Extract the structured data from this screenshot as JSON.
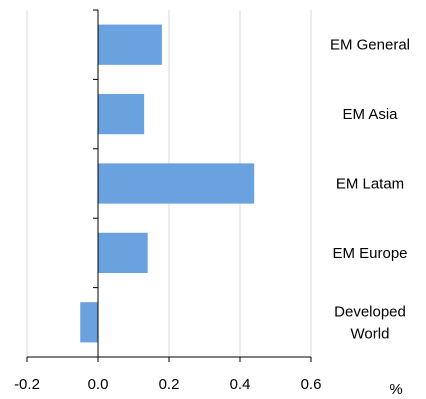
{
  "chart_data": {
    "type": "bar",
    "orientation": "horizontal",
    "categories": [
      "EM General",
      "EM Asia",
      "EM Latam",
      "EM Europe",
      "Developed World"
    ],
    "category_lines": [
      [
        "EM General"
      ],
      [
        "EM Asia"
      ],
      [
        "EM Latam"
      ],
      [
        "EM Europe"
      ],
      [
        "Developed",
        "World"
      ]
    ],
    "values": [
      0.18,
      0.13,
      0.44,
      0.14,
      -0.05
    ],
    "xlim": [
      -0.2,
      0.6
    ],
    "xticks": [
      -0.2,
      0.0,
      0.2,
      0.4,
      0.6
    ],
    "xtick_labels": [
      "-0.2",
      "0.0",
      "0.2",
      "0.4",
      "0.6"
    ],
    "unit_label": "%",
    "grid": "vertical",
    "bar_color": "#6aa2e0",
    "grid_color": "#d9d9d9",
    "axis_color": "#000000"
  }
}
